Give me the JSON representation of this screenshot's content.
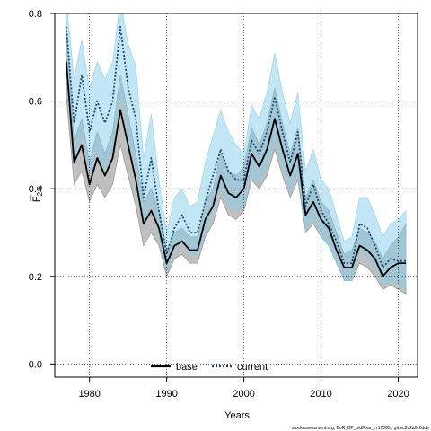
{
  "chart_data": {
    "type": "line",
    "xlabel": "Years",
    "ylabel": "F",
    "ylabel_subscript": "2-6",
    "xlim": [
      1975.5,
      2022.5
    ],
    "ylim": [
      -0.03,
      0.8
    ],
    "x_ticks": [
      1980,
      1990,
      2000,
      2010,
      2020
    ],
    "y_ticks": [
      0.0,
      0.2,
      0.4,
      0.6,
      0.8
    ],
    "x_tick_labels": [
      "1980",
      "1990",
      "2000",
      "2010",
      "2020"
    ],
    "y_tick_labels": [
      "0.0",
      "0.2",
      "0.4",
      "0.6",
      "0.8"
    ],
    "grid": true,
    "legend_position": "bottom-center",
    "x": [
      1977,
      1978,
      1979,
      1980,
      1981,
      1982,
      1983,
      1984,
      1985,
      1986,
      1987,
      1988,
      1989,
      1990,
      1991,
      1992,
      1993,
      1994,
      1995,
      1996,
      1997,
      1998,
      1999,
      2000,
      2001,
      2002,
      2003,
      2004,
      2005,
      2006,
      2007,
      2008,
      2009,
      2010,
      2011,
      2012,
      2013,
      2014,
      2015,
      2016,
      2017,
      2018,
      2019,
      2020,
      2021
    ],
    "series": [
      {
        "name": "base",
        "color": "#000000",
        "band_color": "#808080",
        "style": "solid",
        "values": [
          0.69,
          0.46,
          0.5,
          0.41,
          0.47,
          0.43,
          0.47,
          0.58,
          0.5,
          0.42,
          0.32,
          0.35,
          0.31,
          0.23,
          0.27,
          0.28,
          0.26,
          0.26,
          0.33,
          0.36,
          0.43,
          0.39,
          0.38,
          0.4,
          0.48,
          0.45,
          0.49,
          0.56,
          0.49,
          0.43,
          0.48,
          0.34,
          0.37,
          0.33,
          0.31,
          0.26,
          0.22,
          0.22,
          0.27,
          0.26,
          0.24,
          0.2,
          0.22,
          0.23,
          0.23
        ],
        "lower": [
          0.61,
          0.41,
          0.44,
          0.37,
          0.41,
          0.38,
          0.41,
          0.5,
          0.43,
          0.36,
          0.27,
          0.3,
          0.27,
          0.2,
          0.24,
          0.25,
          0.23,
          0.23,
          0.29,
          0.32,
          0.38,
          0.34,
          0.33,
          0.35,
          0.42,
          0.4,
          0.43,
          0.49,
          0.43,
          0.38,
          0.42,
          0.3,
          0.32,
          0.29,
          0.27,
          0.23,
          0.19,
          0.19,
          0.23,
          0.22,
          0.2,
          0.17,
          0.18,
          0.17,
          0.16
        ],
        "upper": [
          0.77,
          0.51,
          0.56,
          0.46,
          0.53,
          0.48,
          0.53,
          0.66,
          0.57,
          0.48,
          0.37,
          0.4,
          0.35,
          0.26,
          0.3,
          0.31,
          0.29,
          0.29,
          0.37,
          0.4,
          0.48,
          0.44,
          0.43,
          0.45,
          0.54,
          0.5,
          0.55,
          0.63,
          0.55,
          0.48,
          0.54,
          0.38,
          0.42,
          0.37,
          0.35,
          0.3,
          0.25,
          0.26,
          0.31,
          0.3,
          0.28,
          0.24,
          0.27,
          0.29,
          0.32
        ]
      },
      {
        "name": "current",
        "color": "#1a4a6b",
        "band_color": "#87ceeb",
        "style": "dotted",
        "values": [
          0.77,
          0.55,
          0.66,
          0.53,
          0.6,
          0.55,
          0.6,
          0.77,
          0.63,
          0.56,
          0.38,
          0.47,
          0.35,
          0.25,
          0.31,
          0.34,
          0.3,
          0.3,
          0.37,
          0.43,
          0.49,
          0.44,
          0.42,
          0.42,
          0.51,
          0.48,
          0.53,
          0.61,
          0.53,
          0.46,
          0.53,
          0.36,
          0.41,
          0.35,
          0.32,
          0.28,
          0.23,
          0.23,
          0.32,
          0.31,
          0.27,
          0.22,
          0.24,
          0.235,
          0.235
        ],
        "lower": [
          0.65,
          0.45,
          0.53,
          0.43,
          0.49,
          0.44,
          0.49,
          0.62,
          0.51,
          0.45,
          0.31,
          0.38,
          0.29,
          0.21,
          0.26,
          0.28,
          0.25,
          0.25,
          0.3,
          0.35,
          0.4,
          0.36,
          0.35,
          0.36,
          0.43,
          0.41,
          0.45,
          0.51,
          0.45,
          0.39,
          0.44,
          0.3,
          0.34,
          0.29,
          0.27,
          0.23,
          0.19,
          0.19,
          0.26,
          0.25,
          0.22,
          0.18,
          0.19,
          0.18,
          0.17
        ],
        "upper": [
          0.83,
          0.65,
          0.74,
          0.63,
          0.69,
          0.65,
          0.69,
          0.83,
          0.73,
          0.68,
          0.47,
          0.57,
          0.42,
          0.3,
          0.38,
          0.4,
          0.36,
          0.37,
          0.46,
          0.52,
          0.58,
          0.53,
          0.5,
          0.48,
          0.59,
          0.56,
          0.62,
          0.71,
          0.62,
          0.55,
          0.62,
          0.44,
          0.49,
          0.42,
          0.4,
          0.34,
          0.28,
          0.29,
          0.38,
          0.38,
          0.34,
          0.29,
          0.32,
          0.33,
          0.35
        ]
      }
    ]
  },
  "footer_text": "stockassessment.org, BoR_BP_oldFbar_t r17065 , git:ec2c2a0c6dde"
}
